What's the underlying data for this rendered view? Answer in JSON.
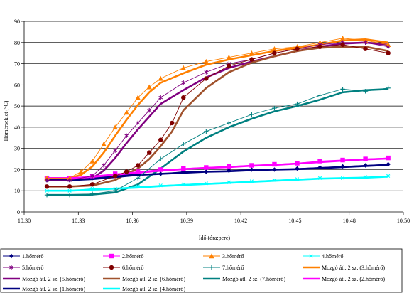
{
  "chart_data": {
    "type": "line",
    "xlabel": "Idő (óra:perc)",
    "ylabel": "Hőmérséklet (°C)",
    "x_tick_labels": [
      "10:30",
      "10:33",
      "10:36",
      "10:39",
      "10:42",
      "10:45",
      "10:48",
      "10:50"
    ],
    "xlim_minutes": [
      0,
      20
    ],
    "ylim": [
      0,
      90
    ],
    "y_ticks": [
      0,
      10,
      20,
      30,
      40,
      50,
      60,
      70,
      80,
      90
    ],
    "grid": "horizontal",
    "legend_position": "bottom",
    "series": [
      {
        "name": "1.hőmérő",
        "color": "#000080",
        "kind": "marker",
        "marker": "diamond",
        "x": [
          1.2,
          2.4,
          3.6,
          4.8,
          6.0,
          7.2,
          8.4,
          9.6,
          10.8,
          12.0,
          13.2,
          14.4,
          15.6,
          16.8,
          18.0,
          19.2
        ],
        "y": [
          15,
          15,
          16,
          17,
          18,
          18,
          19,
          19,
          19.5,
          20,
          20,
          20.5,
          21,
          21.5,
          22,
          22.5
        ]
      },
      {
        "name": "2.hőmérő",
        "color": "#ff00ff",
        "kind": "marker",
        "marker": "square",
        "x": [
          1.2,
          2.4,
          3.6,
          4.8,
          6.0,
          7.2,
          8.4,
          9.6,
          10.8,
          12.0,
          13.2,
          14.4,
          15.6,
          16.8,
          18.0,
          19.2
        ],
        "y": [
          16,
          16,
          17,
          18,
          19,
          20,
          20.5,
          21,
          21.5,
          22,
          22.5,
          23,
          24,
          24.5,
          25,
          25.5
        ]
      },
      {
        "name": "3.hőmérő",
        "color": "#ff8000",
        "kind": "marker",
        "marker": "triangle",
        "x": [
          1.2,
          2.4,
          3.0,
          3.6,
          4.2,
          4.8,
          5.4,
          6.0,
          6.6,
          7.2,
          8.4,
          9.6,
          10.8,
          12.0,
          13.2,
          14.4,
          15.6,
          16.8,
          18.0,
          19.2
        ],
        "y": [
          16,
          16,
          19,
          24,
          32,
          40,
          47,
          54,
          59,
          63,
          68,
          71,
          73,
          75,
          77,
          78,
          80,
          82,
          81,
          79
        ]
      },
      {
        "name": "4.hőmérő",
        "color": "#00ffff",
        "kind": "marker",
        "marker": "star",
        "x": [
          1.2,
          2.4,
          3.6,
          4.8,
          6.0,
          7.2,
          8.4,
          9.6,
          10.8,
          12.0,
          13.2,
          14.4,
          15.6,
          16.8,
          18.0,
          19.2
        ],
        "y": [
          10,
          10,
          11,
          11,
          12,
          12.5,
          13,
          13.5,
          14,
          14.5,
          15,
          15.5,
          16,
          16,
          16.5,
          17
        ]
      },
      {
        "name": "5.hőmérő",
        "color": "#800080",
        "kind": "marker",
        "marker": "asterisk",
        "x": [
          1.2,
          2.4,
          3.6,
          4.2,
          4.8,
          5.4,
          6.0,
          6.6,
          7.2,
          8.4,
          9.6,
          10.8,
          12.0,
          13.2,
          14.4,
          15.6,
          16.8,
          18.0,
          19.2
        ],
        "y": [
          15,
          15,
          17,
          22,
          29,
          36,
          42,
          48,
          54,
          61,
          66,
          70,
          72,
          75,
          77,
          79,
          80,
          80,
          78
        ]
      },
      {
        "name": "6.hőmérő",
        "color": "#800000",
        "kind": "marker",
        "marker": "circle",
        "x": [
          1.2,
          2.4,
          3.6,
          4.8,
          5.4,
          6.0,
          6.6,
          7.2,
          7.8,
          8.4,
          9.6,
          10.8,
          12.0,
          13.2,
          14.4,
          15.6,
          16.8,
          18.0,
          19.2
        ],
        "y": [
          12,
          12,
          13,
          17,
          19,
          22,
          28,
          34,
          42,
          54,
          63,
          69,
          72,
          75,
          77,
          78,
          79,
          77,
          75
        ]
      },
      {
        "name": "7.hőmérő",
        "color": "#008080",
        "kind": "marker",
        "marker": "plus",
        "x": [
          1.2,
          2.4,
          3.6,
          4.8,
          6.0,
          7.2,
          8.4,
          9.6,
          10.8,
          12.0,
          13.2,
          14.4,
          15.6,
          16.8,
          18.0,
          19.2
        ],
        "y": [
          8,
          8,
          8.5,
          10,
          16,
          25,
          32,
          38,
          42,
          46,
          49,
          51,
          55,
          58,
          57,
          58.5
        ]
      },
      {
        "name": "Mozgó átl. 2 sz. (3.hőmérő)",
        "color": "#ff8000",
        "kind": "trend",
        "x": [
          1.2,
          2.4,
          3.0,
          3.6,
          4.2,
          4.8,
          5.4,
          6.0,
          6.6,
          7.2,
          8.4,
          9.6,
          10.8,
          12.0,
          13.2,
          14.4,
          15.6,
          16.8,
          18.0,
          19.2
        ],
        "y": [
          16,
          16,
          17.5,
          21.5,
          28,
          36,
          43.5,
          50.5,
          56.5,
          61,
          65.5,
          69.5,
          72,
          74,
          76,
          77.5,
          79,
          81,
          81.5,
          80
        ]
      },
      {
        "name": "Mozgó átl. 2 sz. (5.hőmérő)",
        "color": "#800080",
        "kind": "trend",
        "x": [
          1.2,
          2.4,
          3.6,
          4.2,
          4.8,
          5.4,
          6.0,
          6.6,
          7.2,
          8.4,
          9.6,
          10.8,
          12.0,
          13.2,
          14.4,
          15.6,
          16.8,
          18.0,
          19.2
        ],
        "y": [
          15,
          15,
          16,
          19.5,
          25.5,
          32.5,
          39,
          45,
          51,
          57.5,
          63.5,
          68,
          71,
          73.5,
          76,
          78,
          79.5,
          80,
          79
        ]
      },
      {
        "name": "Mozgó átl. 2 sz. (6.hőmérő)",
        "color": "#a0522d",
        "kind": "trend",
        "x": [
          1.2,
          2.4,
          3.6,
          4.8,
          5.4,
          6.0,
          6.6,
          7.2,
          7.8,
          8.4,
          9.6,
          10.8,
          12.0,
          13.2,
          14.4,
          15.6,
          16.8,
          18.0,
          19.2
        ],
        "y": [
          12,
          12,
          12.5,
          15,
          18,
          20.5,
          25,
          31,
          38,
          48,
          58.5,
          66,
          70.5,
          73.5,
          76,
          77.5,
          78,
          78,
          76
        ]
      },
      {
        "name": "Mozgó átl. 2 sz. (7.hőmérő)",
        "color": "#008080",
        "kind": "trend",
        "x": [
          1.2,
          2.4,
          3.6,
          4.8,
          6.0,
          7.2,
          8.4,
          9.6,
          10.8,
          12.0,
          13.2,
          14.4,
          15.6,
          16.8,
          18.0,
          19.2
        ],
        "y": [
          8,
          8,
          8.2,
          9.2,
          13,
          20.5,
          28.5,
          35,
          40,
          44,
          47.5,
          50,
          53,
          56.5,
          57.5,
          58
        ]
      },
      {
        "name": "Mozgó átl. 2 sz. (2.hőmérő)",
        "color": "#ff00ff",
        "kind": "trend",
        "x": [
          1.2,
          2.4,
          3.6,
          4.8,
          6.0,
          7.2,
          8.4,
          9.6,
          10.8,
          12.0,
          13.2,
          14.4,
          15.6,
          16.8,
          18.0,
          19.2
        ],
        "y": [
          16,
          16,
          16.5,
          17.5,
          18.5,
          19.5,
          20.2,
          20.8,
          21.2,
          21.8,
          22.2,
          22.8,
          23.5,
          24.2,
          24.8,
          25.2
        ]
      },
      {
        "name": "Mozgó átl. 2 sz. (1.hőmérő)",
        "color": "#000080",
        "kind": "trend",
        "x": [
          1.2,
          2.4,
          3.6,
          4.8,
          6.0,
          7.2,
          8.4,
          9.6,
          10.8,
          12.0,
          13.2,
          14.4,
          15.6,
          16.8,
          18.0,
          19.2
        ],
        "y": [
          15,
          15,
          15.5,
          16.5,
          17.5,
          18,
          18.5,
          19,
          19.2,
          19.7,
          20,
          20.2,
          20.7,
          21.2,
          21.7,
          22.2
        ]
      },
      {
        "name": "Mozgó átl. 2 sz. (4.hőmérő)",
        "color": "#00ffff",
        "kind": "trend",
        "x": [
          1.2,
          2.4,
          3.6,
          4.8,
          6.0,
          7.2,
          8.4,
          9.6,
          10.8,
          12.0,
          13.2,
          14.4,
          15.6,
          16.8,
          18.0,
          19.2
        ],
        "y": [
          10,
          10,
          10.5,
          11,
          11.5,
          12.2,
          12.7,
          13.2,
          13.7,
          14.2,
          14.7,
          15.2,
          15.7,
          16,
          16.2,
          16.7
        ]
      }
    ]
  }
}
